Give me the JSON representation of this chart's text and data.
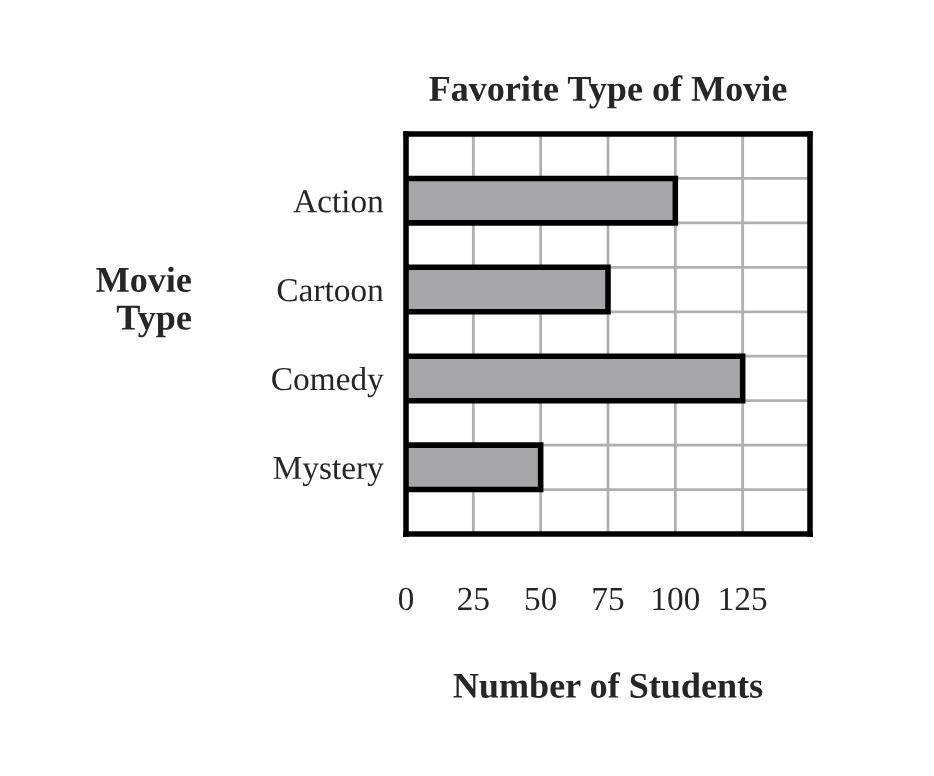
{
  "chart_data": {
    "type": "bar",
    "orientation": "horizontal",
    "title": "Favorite Type of Movie",
    "xlabel": "Number of Students",
    "ylabel": "Movie\nType",
    "categories": [
      "Action",
      "Cartoon",
      "Comedy",
      "Mystery"
    ],
    "values": [
      100,
      75,
      125,
      50
    ],
    "color": "#a6a6a8",
    "xlim": [
      0,
      150
    ],
    "xticks": [
      0,
      25,
      50,
      75,
      100,
      125
    ],
    "grid": true
  }
}
